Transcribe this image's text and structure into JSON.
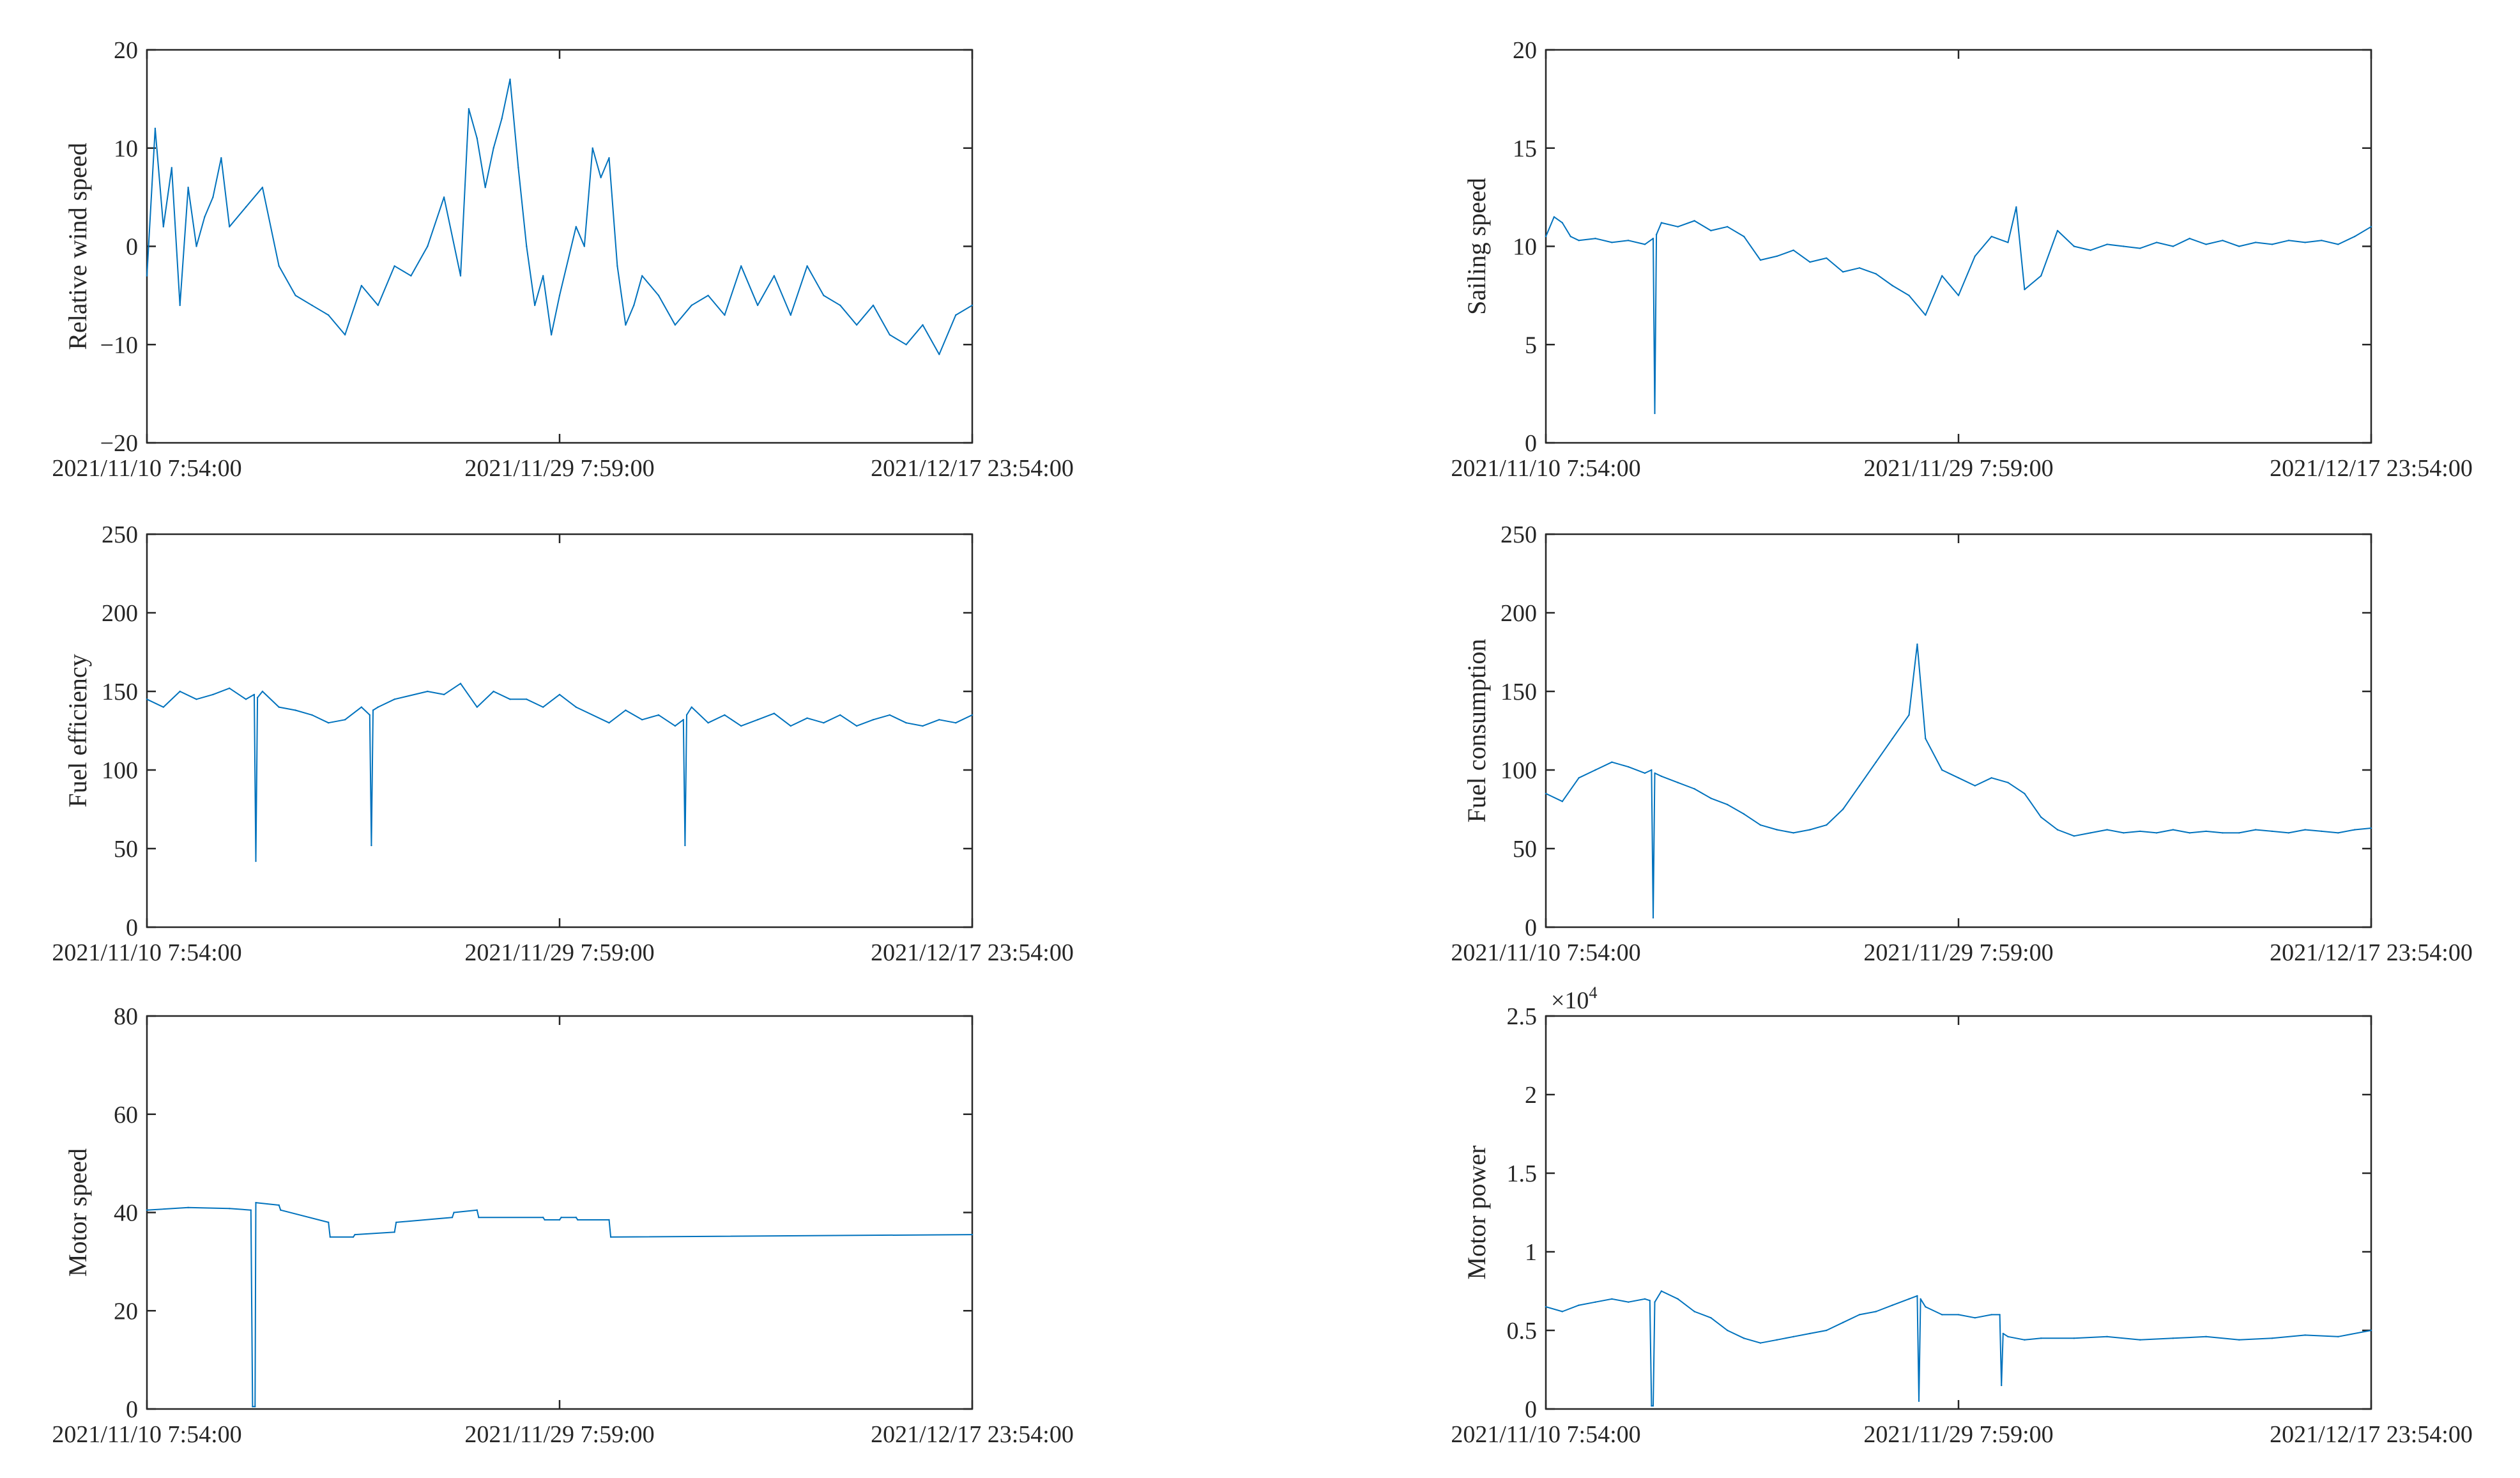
{
  "colors": {
    "series": "#0072BD",
    "axis": "#262626"
  },
  "chart_data": [
    {
      "id": "wind",
      "type": "line",
      "ylabel": "Relative wind speed",
      "ylim": [
        -20,
        20
      ],
      "yticks": [
        -20,
        -10,
        0,
        10,
        20
      ],
      "yticklabels": [
        "−20",
        "−10",
        "0",
        "10",
        "20"
      ],
      "xticklabels": [
        "2021/11/10 7:54:00",
        "2021/11/29 7:59:00",
        "2021/12/17 23:54:00"
      ],
      "xlim": [
        0,
        100
      ],
      "xtick_positions": [
        0,
        50,
        100
      ],
      "series": [
        {
          "name": "Relative wind speed",
          "x": [
            0,
            1,
            2,
            3,
            4,
            5,
            6,
            7,
            8,
            9,
            10,
            12,
            14,
            16,
            18,
            20,
            22,
            24,
            26,
            28,
            30,
            32,
            34,
            36,
            38,
            39,
            40,
            41,
            42,
            43,
            44,
            45,
            46,
            47,
            48,
            49,
            50,
            52,
            53,
            54,
            55,
            56,
            57,
            58,
            59,
            60,
            62,
            64,
            66,
            68,
            70,
            72,
            74,
            76,
            78,
            80,
            82,
            84,
            86,
            88,
            90,
            92,
            94,
            96,
            98,
            100
          ],
          "y": [
            -3,
            12,
            2,
            8,
            -6,
            6,
            0,
            3,
            5,
            9,
            2,
            4,
            6,
            -2,
            -5,
            -6,
            -7,
            -9,
            -4,
            -6,
            -2,
            -3,
            0,
            5,
            -3,
            14,
            11,
            6,
            10,
            13,
            17,
            8,
            0,
            -6,
            -3,
            -9,
            -5,
            2,
            0,
            10,
            7,
            9,
            -2,
            -8,
            -6,
            -3,
            -5,
            -8,
            -6,
            -5,
            -7,
            -2,
            -6,
            -3,
            -7,
            -2,
            -5,
            -6,
            -8,
            -6,
            -9,
            -10,
            -8,
            -11,
            -7,
            -6
          ]
        }
      ]
    },
    {
      "id": "sailing",
      "type": "line",
      "ylabel": "Sailing speed",
      "ylim": [
        0,
        20
      ],
      "yticks": [
        0,
        5,
        10,
        15,
        20
      ],
      "yticklabels": [
        "0",
        "5",
        "10",
        "15",
        "20"
      ],
      "xticklabels": [
        "2021/11/10 7:54:00",
        "2021/11/29 7:59:00",
        "2021/12/17 23:54:00"
      ],
      "xlim": [
        0,
        100
      ],
      "xtick_positions": [
        0,
        50,
        100
      ],
      "series": [
        {
          "name": "Sailing speed",
          "x": [
            0,
            1,
            2,
            3,
            4,
            6,
            8,
            10,
            12,
            13,
            13.2,
            13.4,
            14,
            16,
            18,
            20,
            22,
            24,
            26,
            28,
            30,
            32,
            34,
            36,
            38,
            40,
            42,
            44,
            46,
            48,
            50,
            52,
            54,
            56,
            57,
            58,
            60,
            62,
            64,
            66,
            68,
            70,
            72,
            74,
            76,
            78,
            80,
            82,
            84,
            86,
            88,
            90,
            92,
            94,
            96,
            98,
            100
          ],
          "y": [
            10.5,
            11.5,
            11.2,
            10.5,
            10.3,
            10.4,
            10.2,
            10.3,
            10.1,
            10.4,
            1.5,
            10.6,
            11.2,
            11,
            11.3,
            10.8,
            11,
            10.5,
            9.3,
            9.5,
            9.8,
            9.2,
            9.4,
            8.7,
            8.9,
            8.6,
            8,
            7.5,
            6.5,
            8.5,
            7.5,
            9.5,
            10.5,
            10.2,
            12,
            7.8,
            8.5,
            10.8,
            10,
            9.8,
            10.1,
            10,
            9.9,
            10.2,
            10,
            10.4,
            10.1,
            10.3,
            10,
            10.2,
            10.1,
            10.3,
            10.2,
            10.3,
            10.1,
            10.5,
            11
          ]
        }
      ]
    },
    {
      "id": "efficiency",
      "type": "line",
      "ylabel": "Fuel efficiency",
      "ylim": [
        0,
        250
      ],
      "yticks": [
        0,
        50,
        100,
        150,
        200,
        250
      ],
      "yticklabels": [
        "0",
        "50",
        "100",
        "150",
        "200",
        "250"
      ],
      "xticklabels": [
        "2021/11/10 7:54:00",
        "2021/11/29 7:59:00",
        "2021/12/17 23:54:00"
      ],
      "xlim": [
        0,
        100
      ],
      "xtick_positions": [
        0,
        50,
        100
      ],
      "series": [
        {
          "name": "Fuel efficiency",
          "x": [
            0,
            2,
            4,
            6,
            8,
            10,
            12,
            13,
            13.2,
            13.4,
            14,
            16,
            18,
            20,
            22,
            24,
            26,
            27,
            27.2,
            27.4,
            28,
            30,
            34,
            36,
            38,
            40,
            42,
            44,
            46,
            48,
            50,
            52,
            56,
            58,
            60,
            62,
            64,
            65,
            65.2,
            65.4,
            66,
            68,
            70,
            72,
            74,
            76,
            78,
            80,
            82,
            84,
            86,
            88,
            90,
            92,
            94,
            96,
            98,
            100
          ],
          "y": [
            145,
            140,
            150,
            145,
            148,
            152,
            145,
            148,
            42,
            146,
            150,
            140,
            138,
            135,
            130,
            132,
            140,
            135,
            52,
            138,
            140,
            145,
            150,
            148,
            155,
            140,
            150,
            145,
            145,
            140,
            148,
            140,
            130,
            138,
            132,
            135,
            128,
            132,
            52,
            135,
            140,
            130,
            135,
            128,
            132,
            136,
            128,
            133,
            130,
            135,
            128,
            132,
            135,
            130,
            128,
            132,
            130,
            135
          ]
        }
      ]
    },
    {
      "id": "consumption",
      "type": "line",
      "ylabel": "Fuel consumption",
      "ylim": [
        0,
        250
      ],
      "yticks": [
        0,
        50,
        100,
        150,
        200,
        250
      ],
      "yticklabels": [
        "0",
        "50",
        "100",
        "150",
        "200",
        "250"
      ],
      "xticklabels": [
        "2021/11/10 7:54:00",
        "2021/11/29 7:59:00",
        "2021/12/17 23:54:00"
      ],
      "xlim": [
        0,
        100
      ],
      "xtick_positions": [
        0,
        50,
        100
      ],
      "series": [
        {
          "name": "Fuel consumption",
          "x": [
            0,
            2,
            4,
            6,
            8,
            10,
            12,
            12.8,
            13,
            13.2,
            14,
            16,
            18,
            20,
            22,
            24,
            26,
            28,
            30,
            32,
            34,
            36,
            38,
            40,
            42,
            44,
            45,
            46,
            48,
            50,
            52,
            54,
            56,
            58,
            60,
            62,
            64,
            66,
            68,
            70,
            72,
            74,
            76,
            78,
            80,
            82,
            84,
            86,
            88,
            90,
            92,
            94,
            96,
            98,
            100
          ],
          "y": [
            85,
            80,
            95,
            100,
            105,
            102,
            98,
            100,
            6,
            98,
            96,
            92,
            88,
            82,
            78,
            72,
            65,
            62,
            60,
            62,
            65,
            75,
            90,
            105,
            120,
            135,
            180,
            120,
            100,
            95,
            90,
            95,
            92,
            85,
            70,
            62,
            58,
            60,
            62,
            60,
            61,
            60,
            62,
            60,
            61,
            60,
            60,
            62,
            61,
            60,
            62,
            61,
            60,
            62,
            63
          ]
        }
      ]
    },
    {
      "id": "motor_speed",
      "type": "line",
      "ylabel": "Motor speed",
      "ylim": [
        0,
        80
      ],
      "yticks": [
        0,
        20,
        40,
        60,
        80
      ],
      "yticklabels": [
        "0",
        "20",
        "40",
        "60",
        "80"
      ],
      "xticklabels": [
        "2021/11/10 7:54:00",
        "2021/11/29 7:59:00",
        "2021/12/17 23:54:00"
      ],
      "xlim": [
        0,
        100
      ],
      "xtick_positions": [
        0,
        50,
        100
      ],
      "series": [
        {
          "name": "Motor speed",
          "x": [
            0,
            5,
            10,
            12.6,
            12.8,
            13.1,
            13.2,
            16,
            16.2,
            22,
            22.2,
            25,
            25.2,
            30,
            30.2,
            37,
            37.2,
            40,
            40.2,
            48,
            48.2,
            50,
            50.2,
            52,
            52.2,
            56,
            56.2,
            100
          ],
          "y": [
            40.5,
            41,
            40.8,
            40.5,
            0.5,
            0.5,
            42,
            41.5,
            40.5,
            38,
            35,
            35,
            35.5,
            36,
            38,
            39,
            40,
            40.5,
            39,
            39,
            38.5,
            38.5,
            39,
            39,
            38.5,
            38.5,
            35,
            35.5
          ]
        }
      ]
    },
    {
      "id": "motor_power",
      "type": "line",
      "ylabel": "Motor power",
      "ylim": [
        0,
        2.5
      ],
      "yticks": [
        0,
        0.5,
        1,
        1.5,
        2,
        2.5
      ],
      "yticklabels": [
        "0",
        "0.5",
        "1",
        "1.5",
        "2",
        "2.5"
      ],
      "exponent_base": "×10",
      "exponent_power": "4",
      "xticklabels": [
        "2021/11/10 7:54:00",
        "2021/11/29 7:59:00",
        "2021/12/17 23:54:00"
      ],
      "xlim": [
        0,
        100
      ],
      "xtick_positions": [
        0,
        50,
        100
      ],
      "series": [
        {
          "name": "Motor power",
          "x": [
            0,
            2,
            4,
            6,
            8,
            10,
            12,
            12.6,
            12.8,
            13,
            13.2,
            14,
            16,
            18,
            20,
            22,
            24,
            26,
            28,
            30,
            32,
            34,
            36,
            38,
            40,
            42,
            44,
            45,
            45.2,
            45.4,
            46,
            48,
            50,
            52,
            54,
            55,
            55.2,
            55.4,
            56,
            58,
            60,
            64,
            68,
            72,
            76,
            80,
            84,
            88,
            92,
            96,
            100
          ],
          "y": [
            0.65,
            0.62,
            0.66,
            0.68,
            0.7,
            0.68,
            0.7,
            0.69,
            0.02,
            0.02,
            0.68,
            0.75,
            0.7,
            0.62,
            0.58,
            0.5,
            0.45,
            0.42,
            0.44,
            0.46,
            0.48,
            0.5,
            0.55,
            0.6,
            0.62,
            0.66,
            0.7,
            0.72,
            0.05,
            0.7,
            0.65,
            0.6,
            0.6,
            0.58,
            0.6,
            0.6,
            0.15,
            0.48,
            0.46,
            0.44,
            0.45,
            0.45,
            0.46,
            0.44,
            0.45,
            0.46,
            0.44,
            0.45,
            0.47,
            0.46,
            0.5
          ]
        }
      ]
    }
  ]
}
